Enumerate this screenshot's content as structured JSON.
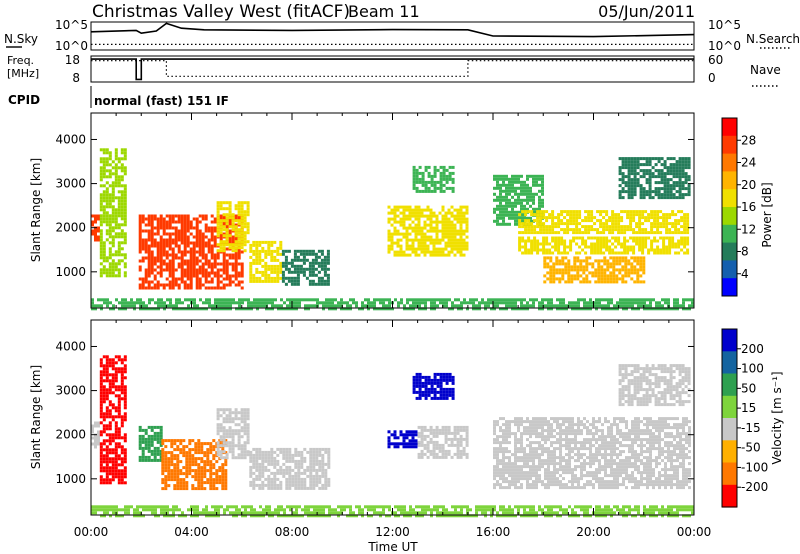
{
  "header": {
    "station": "Christmas Valley West (fitACF)",
    "beam": "Beam 11",
    "date": "05/Jun/2011"
  },
  "noise_panel": {
    "left_label": "N.Sky",
    "left_ticks": [
      "10^5",
      "10^0"
    ],
    "right_label": "N.Search",
    "right_ticks": [
      "10^5",
      "10^0"
    ]
  },
  "freq_panel": {
    "left_label_line1": "Freq.",
    "left_label_line2": "[MHz]",
    "left_ticks": [
      "18",
      "8"
    ],
    "right_label": "Nave",
    "right_ticks": [
      "60",
      "0"
    ]
  },
  "cpid": {
    "label": "CPID",
    "text": "normal (fast) 151 IF"
  },
  "x_axis": {
    "title": "Time UT",
    "ticks": [
      "00:00",
      "04:00",
      "08:00",
      "12:00",
      "16:00",
      "20:00",
      "00:00"
    ]
  },
  "power_colorbar": {
    "title": "Power [dB]",
    "ticks": [
      "28",
      "24",
      "20",
      "16",
      "12",
      "8",
      "4"
    ],
    "colors": [
      "#ff0000",
      "#ff3a00",
      "#ff7800",
      "#ffb400",
      "#f0e000",
      "#9cd800",
      "#3cb454",
      "#247c5a",
      "#145fae",
      "#0000ff"
    ]
  },
  "velocity_colorbar": {
    "title": "Velocity [m s⁻¹]",
    "ticks": [
      "200",
      "100",
      "50",
      "15",
      "-15",
      "-50",
      "-100",
      "-200"
    ],
    "colors": [
      "#0000cc",
      "#1464a0",
      "#2ea050",
      "#7ed43c",
      "#c8c8c8",
      "#ffb000",
      "#ff7800",
      "#ff0000"
    ]
  },
  "chart_data": [
    {
      "type": "heatmap",
      "title": "Power [dB]",
      "xlabel": "Time UT",
      "ylabel": "Slant Range [km]",
      "xlim": [
        0,
        24
      ],
      "ylim": [
        180,
        4600
      ],
      "yticks": [
        1000,
        2000,
        3000,
        4000
      ],
      "clim": [
        0,
        32
      ],
      "regions": [
        {
          "t0": 0.0,
          "t1": 0.35,
          "r0": 1700,
          "r1": 2300,
          "db": 26
        },
        {
          "t0": 0.35,
          "t1": 1.4,
          "r0": 900,
          "r1": 3800,
          "db": 14
        },
        {
          "t0": 1.9,
          "t1": 6.0,
          "r0": 650,
          "r1": 2300,
          "db": 28
        },
        {
          "t0": 5.0,
          "t1": 6.3,
          "r0": 1500,
          "r1": 2600,
          "db": 18
        },
        {
          "t0": 6.3,
          "t1": 7.6,
          "r0": 800,
          "r1": 1700,
          "db": 18
        },
        {
          "t0": 7.6,
          "t1": 9.5,
          "r0": 700,
          "r1": 1500,
          "db": 8
        },
        {
          "t0": 11.8,
          "t1": 15.0,
          "r0": 1400,
          "r1": 2500,
          "db": 18
        },
        {
          "t0": 12.8,
          "t1": 14.4,
          "r0": 2800,
          "r1": 3400,
          "db": 12
        },
        {
          "t0": 16.0,
          "t1": 18.0,
          "r0": 2100,
          "r1": 3200,
          "db": 10
        },
        {
          "t0": 17.0,
          "t1": 23.8,
          "r0": 1900,
          "r1": 2400,
          "db": 18
        },
        {
          "t0": 17.0,
          "t1": 23.8,
          "r0": 1400,
          "r1": 1800,
          "db": 16
        },
        {
          "t0": 18.0,
          "t1": 22.0,
          "r0": 750,
          "r1": 1350,
          "db": 22
        },
        {
          "t0": 21.0,
          "t1": 23.8,
          "r0": 2700,
          "r1": 3600,
          "db": 8
        },
        {
          "t0": 0.0,
          "t1": 24.0,
          "r0": 180,
          "r1": 400,
          "db": 12
        }
      ]
    },
    {
      "type": "heatmap",
      "title": "Velocity [m s⁻¹]",
      "xlabel": "Time UT",
      "ylabel": "Slant Range [km]",
      "xlim": [
        0,
        24
      ],
      "ylim": [
        180,
        4600
      ],
      "yticks": [
        1000,
        2000,
        3000,
        4000
      ],
      "clim": [
        -200,
        200
      ],
      "regions": [
        {
          "t0": 0.0,
          "t1": 0.35,
          "r0": 1700,
          "r1": 2300,
          "v": 0
        },
        {
          "t0": 0.35,
          "t1": 1.4,
          "r0": 900,
          "r1": 3800,
          "v": -150
        },
        {
          "t0": 1.9,
          "t1": 2.8,
          "r0": 1400,
          "r1": 2200,
          "v": 40
        },
        {
          "t0": 2.8,
          "t1": 5.4,
          "r0": 750,
          "r1": 1900,
          "v": -60
        },
        {
          "t0": 5.0,
          "t1": 6.3,
          "r0": 1500,
          "r1": 2600,
          "v": 0
        },
        {
          "t0": 6.3,
          "t1": 9.5,
          "r0": 800,
          "r1": 1700,
          "v": 0
        },
        {
          "t0": 11.8,
          "t1": 13.0,
          "r0": 1700,
          "r1": 2100,
          "v": 150
        },
        {
          "t0": 13.0,
          "t1": 15.0,
          "r0": 1500,
          "r1": 2200,
          "v": 0
        },
        {
          "t0": 12.8,
          "t1": 14.4,
          "r0": 2800,
          "r1": 3400,
          "v": 150
        },
        {
          "t0": 16.0,
          "t1": 23.8,
          "r0": 800,
          "r1": 2400,
          "v": 0
        },
        {
          "t0": 21.0,
          "t1": 23.8,
          "r0": 2700,
          "r1": 3600,
          "v": 0
        },
        {
          "t0": 0.0,
          "t1": 24.0,
          "r0": 180,
          "r1": 400,
          "v": 30
        }
      ]
    },
    {
      "type": "line",
      "title": "N.Sky / N.Search",
      "series": [
        {
          "name": "N.Sky",
          "x": [
            0,
            1.8,
            2.0,
            2.6,
            3.0,
            3.6,
            4.5,
            8,
            12,
            15.0,
            16,
            20,
            24
          ],
          "y": [
            0.65,
            0.7,
            0.6,
            0.68,
            0.95,
            0.78,
            0.72,
            0.7,
            0.73,
            0.72,
            0.5,
            0.48,
            0.55
          ]
        },
        {
          "name": "N.Search",
          "x": [
            0,
            24
          ],
          "y": [
            0.2,
            0.2
          ]
        }
      ]
    },
    {
      "type": "line",
      "title": "Freq. / Nave",
      "series": [
        {
          "name": "Freq.",
          "x": [
            0,
            1.8,
            1.8,
            2.0,
            2.0,
            24
          ],
          "y": [
            0.88,
            0.88,
            0.1,
            0.1,
            0.88,
            0.88
          ]
        },
        {
          "name": "Nave",
          "x": [
            0,
            3.0,
            3.0,
            15.0,
            15.0,
            24
          ],
          "y": [
            0.82,
            0.82,
            0.22,
            0.22,
            0.82,
            0.82
          ]
        }
      ]
    }
  ]
}
